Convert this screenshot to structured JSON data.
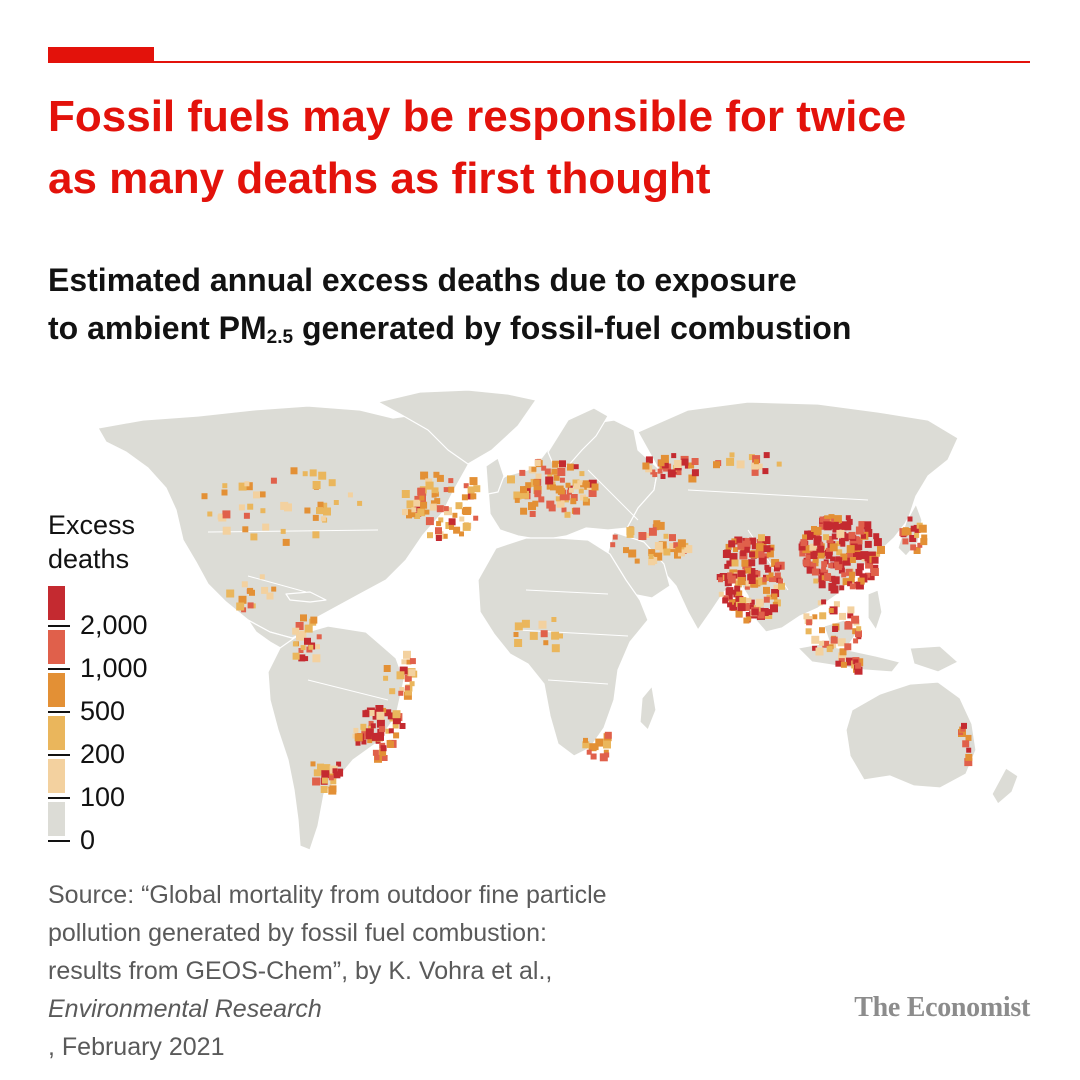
{
  "headline": {
    "line1": "Fossil fuels may be responsible for twice",
    "line2": "as many deaths as first thought"
  },
  "subtitle": {
    "line1": "Estimated annual excess deaths due to exposure",
    "line2_before": "to ambient PM",
    "line2_sub": "2.5",
    "line2_after": " generated by fossil-fuel combustion"
  },
  "legend": {
    "title_line1": "Excess",
    "title_line2": "deaths",
    "ticks": [
      "2,000",
      "1,000",
      "500",
      "200",
      "100",
      "0"
    ],
    "colors": [
      "#c42a30",
      "#e0604b",
      "#e39035",
      "#eab65c",
      "#f3d19f",
      "#dcdcd6"
    ]
  },
  "colors": {
    "headline": "#e3120b",
    "land": "#dcdcd6",
    "border": "#ffffff"
  },
  "source": {
    "line1": "Source: “Global mortality from outdoor fine particle",
    "line2": "pollution generated by fossil fuel combustion:",
    "line3": "results from GEOS-Chem”, by K. Vohra et al.,",
    "line4_journal": "Environmental Research",
    "line4_date": ", February 2021"
  },
  "brand": "The Economist"
}
